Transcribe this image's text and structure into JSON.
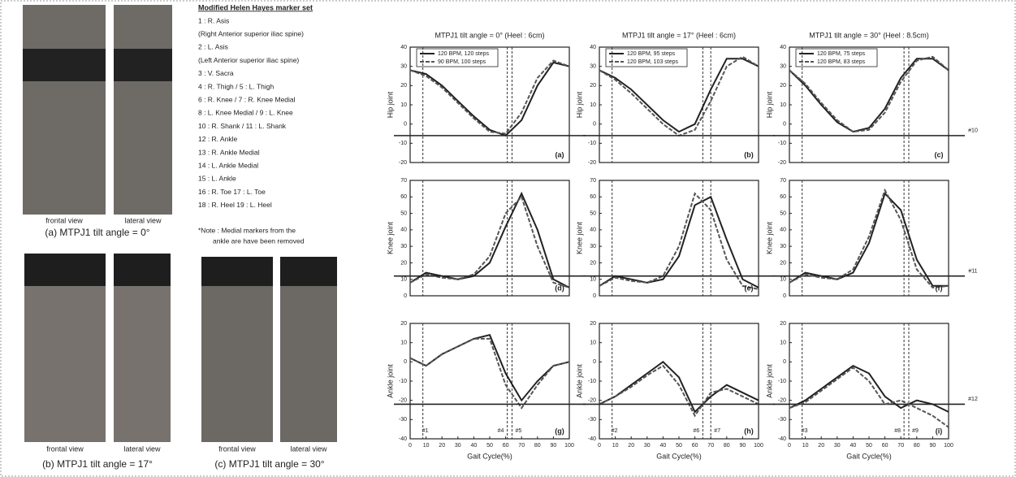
{
  "photos": {
    "a": {
      "views": [
        "frontal view",
        "lateral view"
      ],
      "caption": "(a) MTPJ1 tilt angle = 0°"
    },
    "b": {
      "views": [
        "frontal view",
        "lateral view"
      ],
      "caption": "(b) MTPJ1 tilt angle = 17°"
    },
    "c": {
      "views": [
        "frontal view",
        "lateral view"
      ],
      "caption": "(c) MTPJ1 tilt angle = 30°"
    }
  },
  "marker_list": {
    "title": "Modified Helen Hayes marker set",
    "items": [
      "1 : R. Asis",
      "(Right Anterior superior iliac spine)",
      "2 : L. Asis",
      "(Left Anterior superior iliac spine)",
      "3 : V. Sacra",
      "4 : R. Thigh  /  5 : L. Thigh",
      "6 : R. Knee  /  7 : R. Knee Medial",
      "8 : L. Knee Medial  /  9 : L. Knee",
      "10 : R. Shank  /  11 : L. Shank",
      "12 : R. Ankle",
      "13 : R. Ankle Medial",
      "14 : L. Ankle Medial",
      "15 : L. Ankle",
      "16 : R. Toe          17 : L. Toe",
      "18 : R. Heel         19 : L. Heel"
    ],
    "note": [
      "*Note : Medial markers from the",
      "ankle are have been removed"
    ]
  },
  "chart_data": [
    {
      "type": "line",
      "title": "MTPJ1 tilt angle = 0° (Heel : 6cm)",
      "ylabel": "Hip joint",
      "panel": "(a)",
      "x": [
        0,
        10,
        20,
        30,
        40,
        50,
        60,
        70,
        80,
        90,
        100
      ],
      "xlim": [
        0,
        100
      ],
      "ylim": [
        -20,
        40
      ],
      "yticks": [
        -20,
        -10,
        0,
        10,
        20,
        30,
        40
      ],
      "series": [
        {
          "name": "120 BPM, 120 steps",
          "color": "#222",
          "style": "solid",
          "values": [
            28,
            26,
            20,
            12,
            4,
            -3,
            -6,
            2,
            20,
            32,
            30
          ]
        },
        {
          "name": "90 BPM, 100 steps",
          "color": "#555",
          "style": "dashed",
          "values": [
            28,
            25,
            19,
            11,
            3,
            -4,
            -5,
            6,
            24,
            33,
            30
          ]
        }
      ],
      "vlines": [
        8,
        61,
        64
      ]
    },
    {
      "type": "line",
      "title": "MTPJ1 tilt angle = 17° (Heel : 6cm)",
      "ylabel": "Hip joint",
      "panel": "(b)",
      "x": [
        0,
        10,
        20,
        30,
        40,
        50,
        60,
        70,
        80,
        90,
        100
      ],
      "xlim": [
        0,
        100
      ],
      "ylim": [
        -20,
        40
      ],
      "yticks": [
        -20,
        -10,
        0,
        10,
        20,
        30,
        40
      ],
      "series": [
        {
          "name": "120 BPM, 95 steps",
          "color": "#222",
          "style": "solid",
          "values": [
            28,
            24,
            18,
            10,
            2,
            -4,
            0,
            18,
            34,
            34,
            30
          ]
        },
        {
          "name": "120 BPM, 103 steps",
          "color": "#555",
          "style": "dashed",
          "values": [
            28,
            23,
            16,
            8,
            0,
            -6,
            -3,
            12,
            30,
            35,
            30
          ]
        }
      ],
      "vlines": [
        8,
        65,
        70
      ]
    },
    {
      "type": "line",
      "title": "MTPJ1 tilt angle = 30° (Heel : 8.5cm)",
      "ylabel": "Hip joint",
      "panel": "(c)",
      "x": [
        0,
        10,
        20,
        30,
        40,
        50,
        60,
        70,
        80,
        90,
        100
      ],
      "xlim": [
        0,
        100
      ],
      "ylim": [
        -20,
        40
      ],
      "yticks": [
        -20,
        -10,
        0,
        10,
        20,
        30,
        40
      ],
      "series": [
        {
          "name": "120 BPM, 75 steps",
          "color": "#222",
          "style": "solid",
          "values": [
            28,
            20,
            10,
            1,
            -4,
            -2,
            8,
            24,
            34,
            34,
            28
          ]
        },
        {
          "name": "120 BPM, 83 steps",
          "color": "#555",
          "style": "dashed",
          "values": [
            28,
            21,
            11,
            2,
            -4,
            -3,
            6,
            22,
            33,
            35,
            28
          ]
        }
      ],
      "vlines": [
        8,
        72,
        75
      ],
      "hline": {
        "value": -6,
        "label": "#10"
      }
    },
    {
      "type": "line",
      "ylabel": "Knee joint",
      "panel": "(d)",
      "x": [
        0,
        10,
        20,
        30,
        40,
        50,
        60,
        70,
        80,
        90,
        100
      ],
      "xlim": [
        0,
        100
      ],
      "ylim": [
        0,
        70
      ],
      "yticks": [
        0,
        10,
        20,
        30,
        40,
        50,
        60,
        70
      ],
      "series": [
        {
          "color": "#222",
          "style": "solid",
          "values": [
            8,
            14,
            12,
            10,
            12,
            20,
            42,
            62,
            40,
            10,
            5
          ]
        },
        {
          "color": "#555",
          "style": "dashed",
          "values": [
            8,
            13,
            11,
            10,
            13,
            24,
            50,
            60,
            30,
            8,
            5
          ]
        }
      ],
      "vlines": [
        8,
        61,
        64
      ]
    },
    {
      "type": "line",
      "ylabel": "Knee joint",
      "panel": "(e)",
      "x": [
        0,
        10,
        20,
        30,
        40,
        50,
        60,
        70,
        80,
        90,
        100
      ],
      "xlim": [
        0,
        100
      ],
      "ylim": [
        0,
        70
      ],
      "yticks": [
        0,
        10,
        20,
        30,
        40,
        50,
        60,
        70
      ],
      "series": [
        {
          "color": "#222",
          "style": "solid",
          "values": [
            6,
            12,
            10,
            8,
            10,
            24,
            55,
            60,
            34,
            10,
            5
          ]
        },
        {
          "color": "#555",
          "style": "dashed",
          "values": [
            6,
            11,
            9,
            8,
            12,
            30,
            62,
            52,
            22,
            6,
            4
          ]
        }
      ],
      "vlines": [
        8,
        65,
        70
      ]
    },
    {
      "type": "line",
      "ylabel": "Knee joint",
      "panel": "(f)",
      "x": [
        0,
        10,
        20,
        30,
        40,
        50,
        60,
        70,
        80,
        90,
        100
      ],
      "xlim": [
        0,
        100
      ],
      "ylim": [
        0,
        70
      ],
      "yticks": [
        0,
        10,
        20,
        30,
        40,
        50,
        60,
        70
      ],
      "series": [
        {
          "color": "#222",
          "style": "solid",
          "values": [
            8,
            14,
            12,
            10,
            14,
            32,
            62,
            52,
            22,
            6,
            6
          ]
        },
        {
          "color": "#555",
          "style": "dashed",
          "values": [
            8,
            13,
            11,
            10,
            16,
            36,
            64,
            46,
            16,
            5,
            6
          ]
        }
      ],
      "vlines": [
        8,
        72,
        75
      ],
      "hline": {
        "value": 12,
        "label": "#11"
      }
    },
    {
      "type": "line",
      "ylabel": "Ankle joint",
      "xlabel": "Gait Cycle(%)",
      "panel": "(g)",
      "x": [
        0,
        10,
        20,
        30,
        40,
        50,
        60,
        70,
        80,
        90,
        100
      ],
      "xlim": [
        0,
        100
      ],
      "xticks": [
        0,
        10,
        20,
        30,
        40,
        50,
        60,
        70,
        80,
        90,
        100
      ],
      "ylim": [
        -40,
        20
      ],
      "yticks": [
        -40,
        -30,
        -20,
        -10,
        0,
        10,
        20
      ],
      "series": [
        {
          "color": "#222",
          "style": "solid",
          "values": [
            2,
            -2,
            4,
            8,
            12,
            14,
            -6,
            -20,
            -10,
            -2,
            0
          ]
        },
        {
          "color": "#555",
          "style": "dashed",
          "values": [
            2,
            -2,
            4,
            8,
            12,
            12,
            -12,
            -24,
            -12,
            -2,
            0
          ]
        }
      ],
      "vlines": [
        {
          "value": 8,
          "label": "#1"
        },
        {
          "value": 61,
          "label": "#4"
        },
        {
          "value": 64,
          "label": "#5"
        }
      ]
    },
    {
      "type": "line",
      "ylabel": "Ankle joint",
      "xlabel": "Gait Cycle(%)",
      "panel": "(h)",
      "x": [
        0,
        10,
        20,
        30,
        40,
        50,
        60,
        70,
        80,
        90,
        100
      ],
      "xlim": [
        0,
        100
      ],
      "xticks": [
        0,
        10,
        20,
        30,
        40,
        50,
        60,
        70,
        80,
        90,
        100
      ],
      "ylim": [
        -40,
        20
      ],
      "yticks": [
        -40,
        -30,
        -20,
        -10,
        0,
        10,
        20
      ],
      "series": [
        {
          "color": "#222",
          "style": "solid",
          "values": [
            -22,
            -18,
            -12,
            -6,
            0,
            -8,
            -26,
            -18,
            -12,
            -16,
            -20
          ]
        },
        {
          "color": "#555",
          "style": "dashed",
          "values": [
            -22,
            -18,
            -13,
            -7,
            -2,
            -12,
            -28,
            -16,
            -14,
            -18,
            -22
          ]
        }
      ],
      "vlines": [
        {
          "value": 8,
          "label": "#2"
        },
        {
          "value": 65,
          "label": "#6"
        },
        {
          "value": 70,
          "label": "#7"
        }
      ]
    },
    {
      "type": "line",
      "ylabel": "Ankle joint",
      "xlabel": "Gait Cycle(%)",
      "panel": "(i)",
      "x": [
        0,
        10,
        20,
        30,
        40,
        50,
        60,
        70,
        80,
        90,
        100
      ],
      "xlim": [
        0,
        100
      ],
      "xticks": [
        0,
        10,
        20,
        30,
        40,
        50,
        60,
        70,
        80,
        90,
        100
      ],
      "ylim": [
        -40,
        20
      ],
      "yticks": [
        -40,
        -30,
        -20,
        -10,
        0,
        10,
        20
      ],
      "series": [
        {
          "color": "#222",
          "style": "solid",
          "values": [
            -24,
            -20,
            -14,
            -8,
            -2,
            -6,
            -18,
            -24,
            -20,
            -22,
            -26
          ]
        },
        {
          "color": "#555",
          "style": "dashed",
          "values": [
            -24,
            -21,
            -15,
            -9,
            -3,
            -10,
            -22,
            -20,
            -24,
            -28,
            -34
          ]
        }
      ],
      "vlines": [
        {
          "value": 8,
          "label": "#3"
        },
        {
          "value": 72,
          "label": "#8"
        },
        {
          "value": 75,
          "label": "#9"
        }
      ],
      "hline": {
        "value": -22,
        "label": "#12"
      }
    }
  ]
}
